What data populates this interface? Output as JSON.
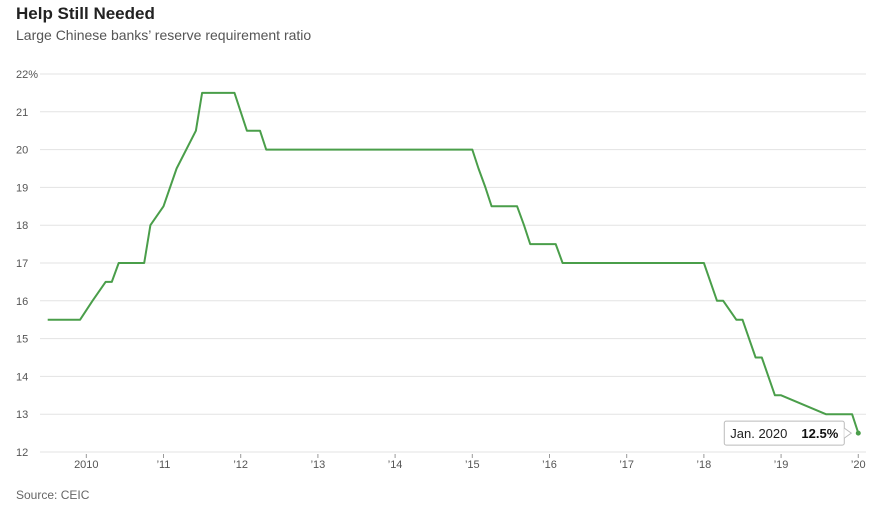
{
  "header": {
    "title": "Help Still Needed",
    "subtitle": "Large Chinese banks’ reserve requirement ratio"
  },
  "footer": {
    "source": "Source: CEIC"
  },
  "colors": {
    "line": "#4a9e4a",
    "grid": "#e3e3e3",
    "tick": "#555555"
  },
  "chart_data": {
    "type": "line",
    "title": "Help Still Needed",
    "subtitle": "Large Chinese banks’ reserve requirement ratio",
    "ylim": [
      12,
      22
    ],
    "xlim": [
      2009.5,
      2020.0
    ],
    "grid": true,
    "y_ticks": [
      {
        "value": 22,
        "label": "22%"
      },
      {
        "value": 21,
        "label": "21"
      },
      {
        "value": 20,
        "label": "20"
      },
      {
        "value": 19,
        "label": "19"
      },
      {
        "value": 18,
        "label": "18"
      },
      {
        "value": 17,
        "label": "17"
      },
      {
        "value": 16,
        "label": "16"
      },
      {
        "value": 15,
        "label": "15"
      },
      {
        "value": 14,
        "label": "14"
      },
      {
        "value": 13,
        "label": "13"
      },
      {
        "value": 12,
        "label": "12"
      }
    ],
    "x_ticks": [
      {
        "value": 2010,
        "label": "2010"
      },
      {
        "value": 2011,
        "label": "’11"
      },
      {
        "value": 2012,
        "label": "’12"
      },
      {
        "value": 2013,
        "label": "’13"
      },
      {
        "value": 2014,
        "label": "’14"
      },
      {
        "value": 2015,
        "label": "’15"
      },
      {
        "value": 2016,
        "label": "’16"
      },
      {
        "value": 2017,
        "label": "’17"
      },
      {
        "value": 2018,
        "label": "’18"
      },
      {
        "value": 2019,
        "label": "’19"
      },
      {
        "value": 2020,
        "label": "’20"
      }
    ],
    "series": [
      {
        "x": [
          2009.5,
          2009.92,
          2010.08,
          2010.25,
          2010.33,
          2010.42,
          2010.75,
          2010.83,
          2011.0,
          2011.17,
          2011.42,
          2011.5,
          2011.83,
          2011.92,
          2012.0,
          2012.08,
          2012.25,
          2012.33,
          2015.0,
          2015.08,
          2015.17,
          2015.25,
          2015.58,
          2015.67,
          2015.75,
          2016.08,
          2016.17,
          2018.0,
          2018.17,
          2018.25,
          2018.42,
          2018.5,
          2018.67,
          2018.75,
          2018.92,
          2019.0,
          2019.58,
          2019.67,
          2019.92,
          2020.0
        ],
        "values": [
          15.5,
          15.5,
          16.0,
          16.5,
          16.5,
          17.0,
          17.0,
          18.0,
          18.5,
          19.5,
          20.5,
          21.5,
          21.5,
          21.5,
          21.0,
          20.5,
          20.5,
          20.0,
          20.0,
          19.5,
          19.0,
          18.5,
          18.5,
          18.0,
          17.5,
          17.5,
          17.0,
          17.0,
          16.0,
          16.0,
          15.5,
          15.5,
          14.5,
          14.5,
          13.5,
          13.5,
          13.0,
          13.0,
          13.0,
          12.5
        ]
      }
    ],
    "annotation": {
      "x": 2020.0,
      "y": 12.5,
      "label": "Jan. 2020",
      "value": "12.5%"
    }
  }
}
